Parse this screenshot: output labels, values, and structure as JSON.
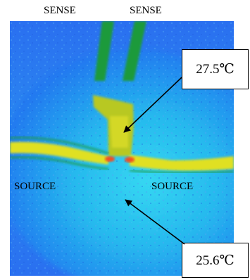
{
  "labels": {
    "sense_left": "SENSE",
    "sense_right": "SENSE",
    "source_left": "SOURCE",
    "source_right": "SOURCE"
  },
  "callouts": {
    "upper": "27.5℃",
    "lower": "25.6℃"
  },
  "colors": {
    "background": "#2a6ff0",
    "cool_area": "#26c8f0",
    "sense_trace": "#1a9a3a",
    "hot_trace": "#e8e020",
    "hot_spot": "#f05020"
  }
}
